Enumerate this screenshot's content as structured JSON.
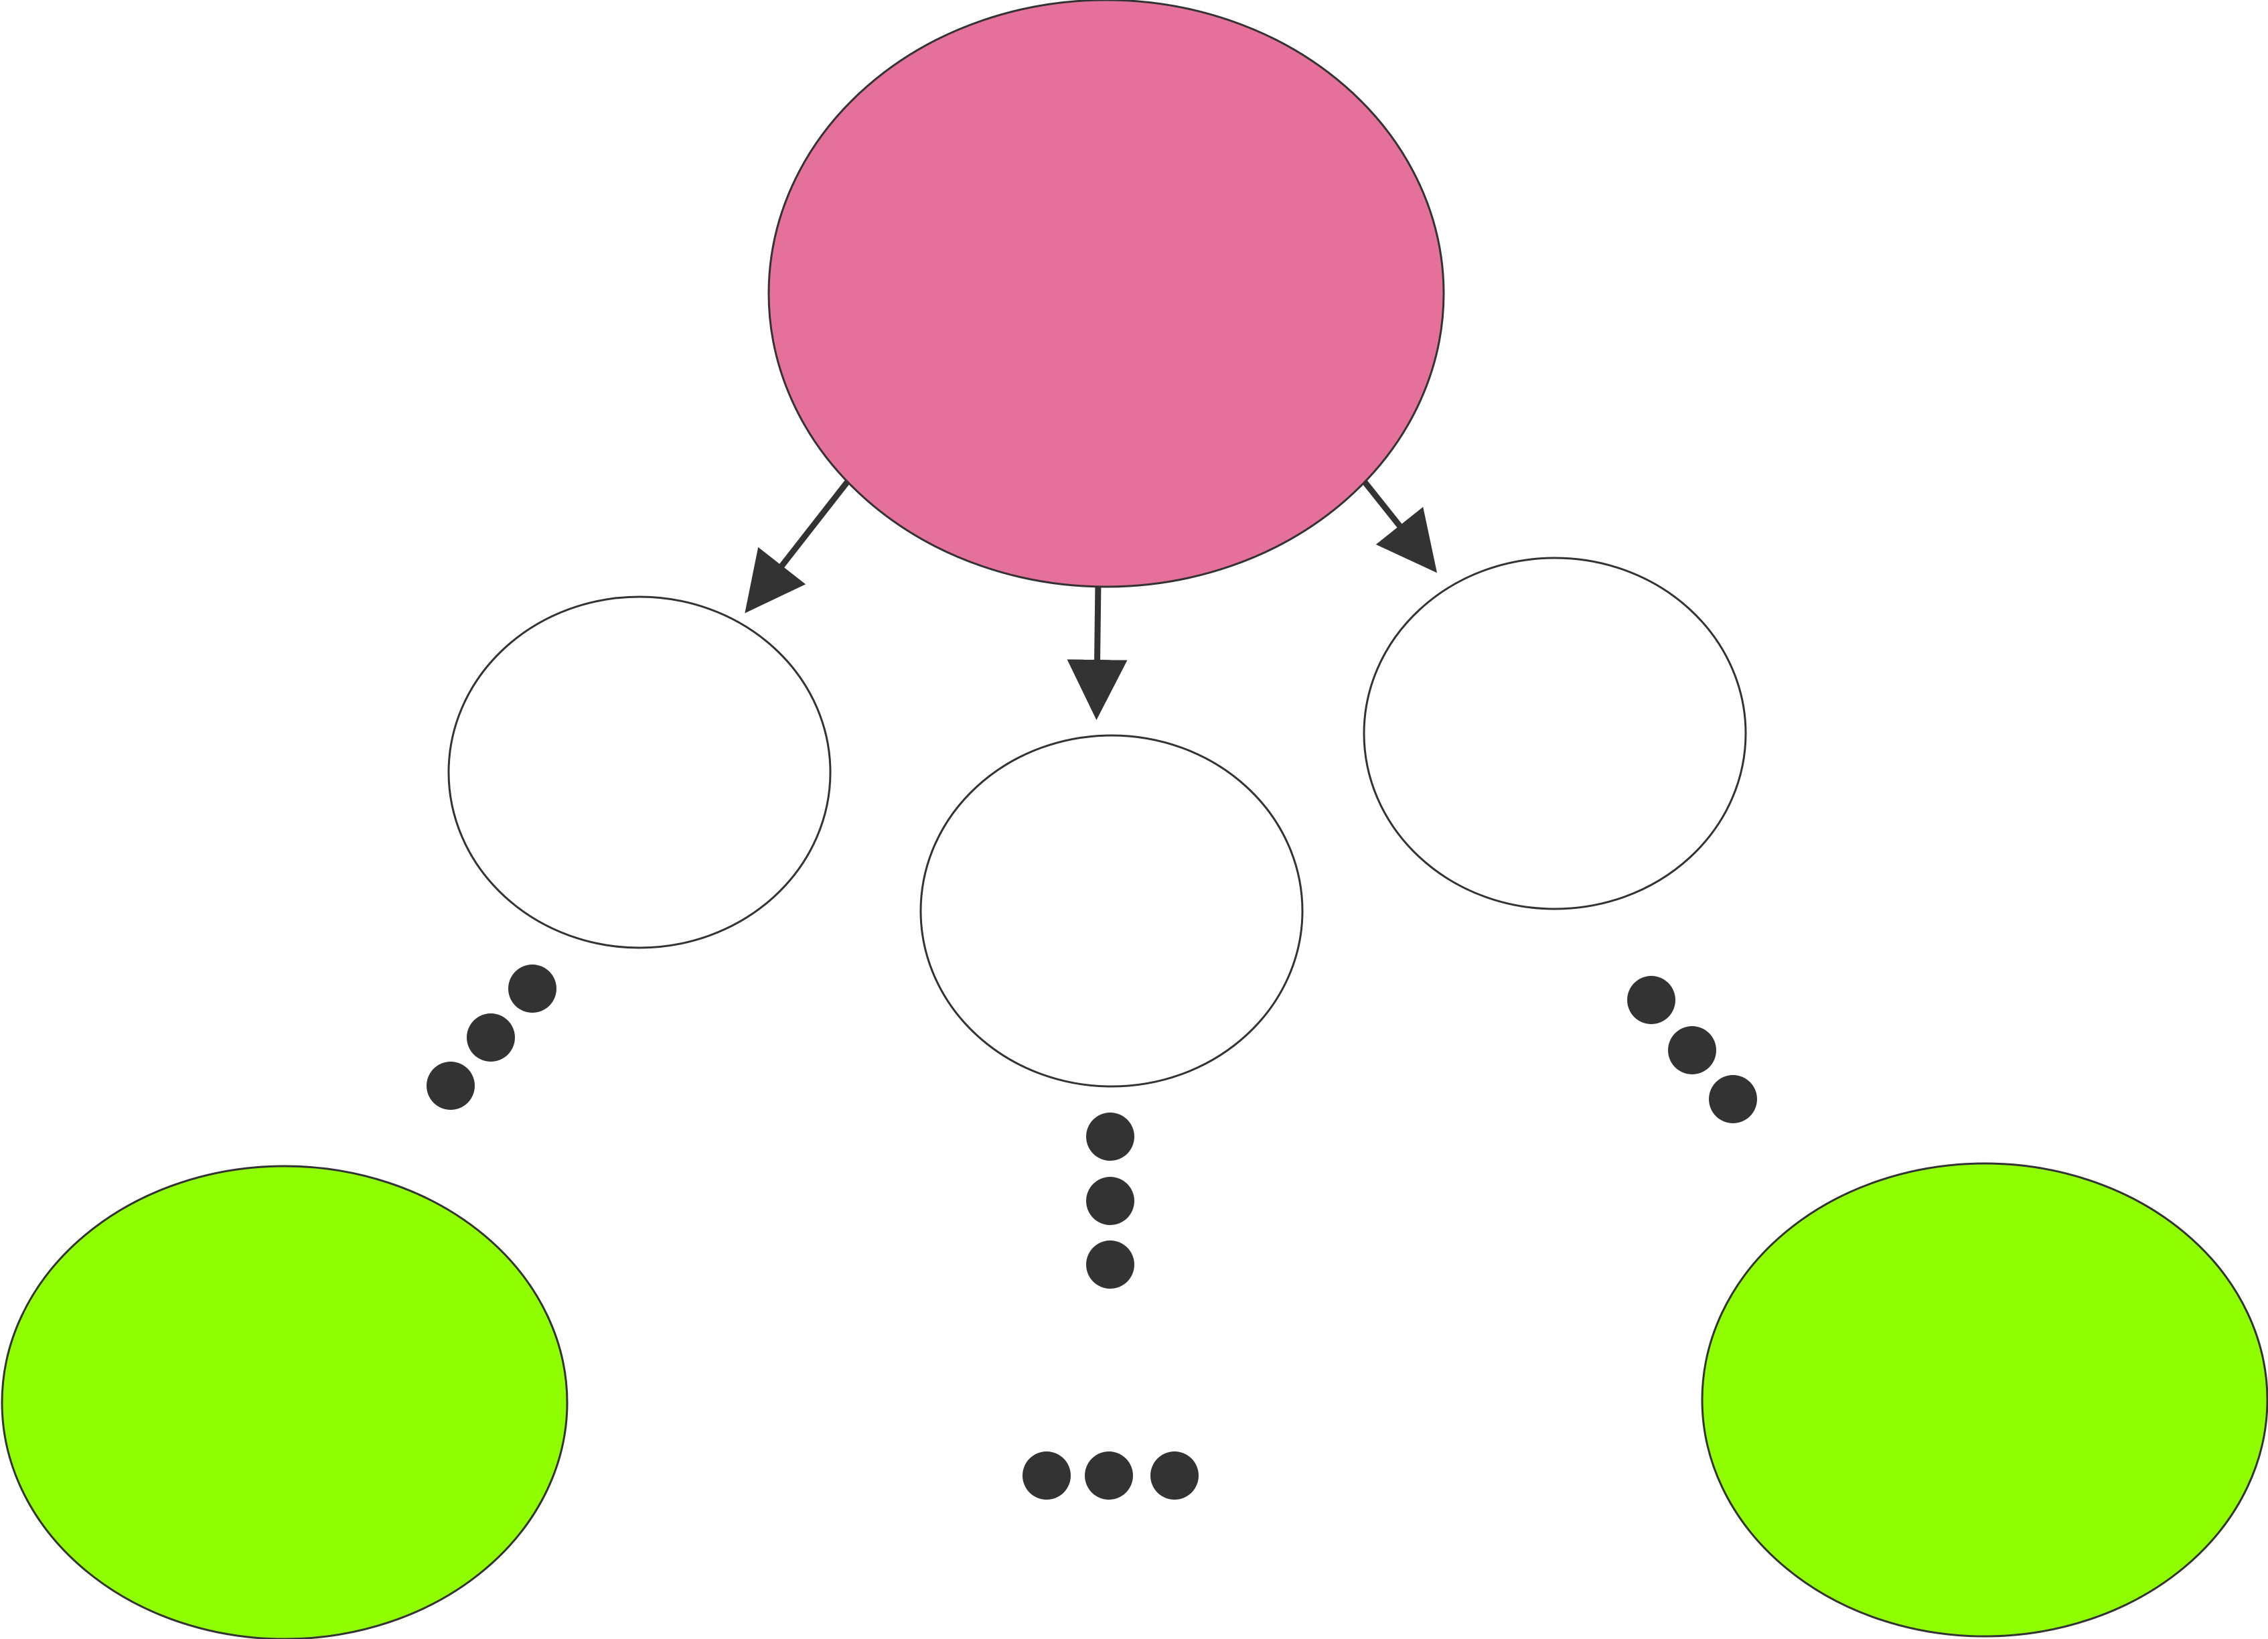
{
  "diagram": {
    "colors": {
      "root": "#e5719b",
      "child": "#ffffff",
      "leaf": "#8fff00",
      "outline": "#333333",
      "connector": "#333333",
      "dot": "#333333"
    },
    "nodes": [
      {
        "id": "root-node",
        "level": "root",
        "label": ""
      },
      {
        "id": "child-node-left",
        "level": "child",
        "label": ""
      },
      {
        "id": "child-node-middle",
        "level": "child",
        "label": ""
      },
      {
        "id": "child-node-right",
        "level": "child",
        "label": ""
      },
      {
        "id": "leaf-node-left",
        "level": "leaf",
        "label": ""
      },
      {
        "id": "leaf-node-right",
        "level": "leaf",
        "label": ""
      }
    ],
    "edges": [
      {
        "from": "root-node",
        "to": "child-node-left"
      },
      {
        "from": "root-node",
        "to": "child-node-middle"
      },
      {
        "from": "root-node",
        "to": "child-node-right"
      }
    ],
    "ellipsis_groups": [
      {
        "name": "ellipsis-left-diagonal",
        "count": 3
      },
      {
        "name": "ellipsis-middle-vertical",
        "count": 3
      },
      {
        "name": "ellipsis-right-diagonal",
        "count": 3
      },
      {
        "name": "ellipsis-bottom-horizontal",
        "count": 3
      }
    ]
  }
}
